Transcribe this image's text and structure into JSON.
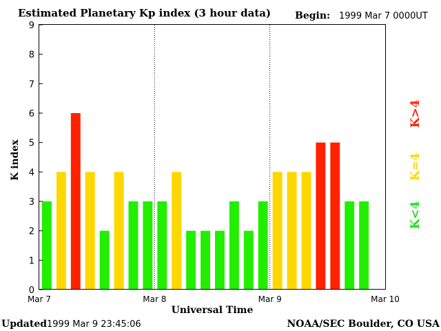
{
  "chart_data": {
    "type": "bar",
    "title": "Estimated Planetary Kp index (3 hour data)",
    "begin_label": "Begin:",
    "begin_value": "1999 Mar 7 0000UT",
    "xlabel": "Universal Time",
    "ylabel": "K index",
    "ylim": [
      0,
      9
    ],
    "yticks": [
      "0",
      "1",
      "2",
      "3",
      "4",
      "5",
      "6",
      "7",
      "8",
      "9"
    ],
    "xticks": [
      "Mar 7",
      "Mar 8",
      "Mar 9",
      "Mar 10"
    ],
    "values": [
      3,
      4,
      6,
      4,
      2,
      4,
      3,
      3,
      3,
      4,
      2,
      2,
      2,
      3,
      2,
      3,
      4,
      4,
      4,
      5,
      5,
      3,
      3
    ],
    "legend": [
      {
        "label": "K<4",
        "color": "#22dd22"
      },
      {
        "label": "K=4",
        "color": "#ffd700"
      },
      {
        "label": "K>4",
        "color": "#ff2200"
      }
    ],
    "colors": {
      "low": "#22ee00",
      "equal": "#ffd700",
      "high": "#ff2200"
    }
  },
  "footer": {
    "updated_label": "Updated",
    "updated_value": "1999 Mar  9 23:45:06",
    "credit": "NOAA/SEC Boulder, CO USA"
  }
}
